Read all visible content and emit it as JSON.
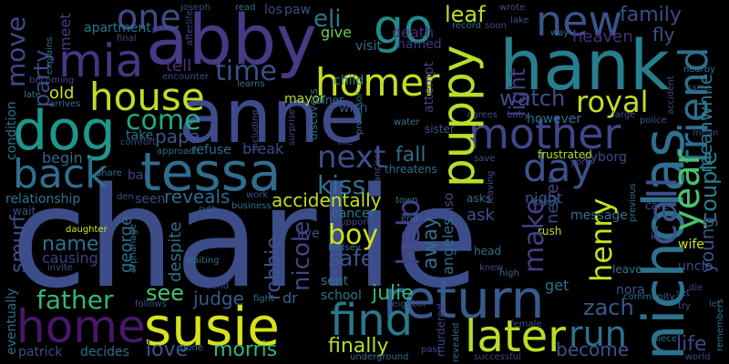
{
  "words": [
    {
      "text": "charlie",
      "color": "#3c4d8a"
    },
    {
      "text": "anne",
      "color": "#3f4a8a"
    },
    {
      "text": "abby",
      "color": "#453a84"
    },
    {
      "text": "hank",
      "color": "#277e8e"
    },
    {
      "text": "tessa",
      "color": "#2f6d8e"
    },
    {
      "text": "dog",
      "color": "#1f968b"
    },
    {
      "text": "mia",
      "color": "#453781"
    },
    {
      "text": "susie",
      "color": "#d8e219"
    },
    {
      "text": "nicholas",
      "color": "#2c728e"
    },
    {
      "text": "puppy",
      "color": "#b8de29"
    },
    {
      "text": "return",
      "color": "#38598c"
    },
    {
      "text": "find",
      "color": "#2a788e"
    },
    {
      "text": "house",
      "color": "#bddf26"
    },
    {
      "text": "homer",
      "color": "#c2df23"
    },
    {
      "text": "go",
      "color": "#238a8d"
    },
    {
      "text": "new",
      "color": "#3a548c"
    },
    {
      "text": "mother",
      "color": "#404688"
    },
    {
      "text": "home",
      "color": "#481769"
    },
    {
      "text": "later",
      "color": "#bade28"
    },
    {
      "text": "day",
      "color": "#3b528b"
    },
    {
      "text": "friend",
      "color": "#2d708e"
    },
    {
      "text": "call",
      "color": "#3b518b"
    },
    {
      "text": "year",
      "color": "#4cc26c"
    },
    {
      "text": "back",
      "color": "#2e6f8e"
    },
    {
      "text": "one",
      "color": "#3e4c8a"
    },
    {
      "text": "move",
      "color": "#3f4889"
    },
    {
      "text": "come",
      "color": "#23a983"
    },
    {
      "text": "next",
      "color": "#3d4e8a"
    },
    {
      "text": "help",
      "color": "#404388"
    },
    {
      "text": "run",
      "color": "#2b748e"
    },
    {
      "text": "henry",
      "color": "#c8e020"
    },
    {
      "text": "boy",
      "color": "#d0e11c"
    },
    {
      "text": "father",
      "color": "#33b67a"
    },
    {
      "text": "kiss",
      "color": "#2c728e"
    },
    {
      "text": "eli",
      "color": "#2a788e"
    },
    {
      "text": "time",
      "color": "#3c4f8a"
    },
    {
      "text": "royal",
      "color": "#c0df25"
    },
    {
      "text": "leaf",
      "color": "#bade28"
    },
    {
      "text": "party",
      "color": "#3e4989"
    },
    {
      "text": "couple",
      "color": "#26818e"
    },
    {
      "text": "robbie",
      "color": "#3a548c"
    },
    {
      "text": "nicole",
      "color": "#3f4788"
    },
    {
      "text": "make",
      "color": "#433e85"
    },
    {
      "text": "light",
      "color": "#433d84"
    },
    {
      "text": "fall",
      "color": "#2f6c8e"
    },
    {
      "text": "see",
      "color": "#4cc26c"
    },
    {
      "text": "morris",
      "color": "#35b779"
    },
    {
      "text": "finally",
      "color": "#b5de2b"
    },
    {
      "text": "love",
      "color": "#3b528b"
    },
    {
      "text": "papa",
      "color": "#39558c"
    },
    {
      "text": "watch",
      "color": "#3d4d8a"
    },
    {
      "text": "meanwhile",
      "color": "#2a788e"
    },
    {
      "text": "zach",
      "color": "#37598c"
    },
    {
      "text": "young",
      "color": "#3b518b"
    },
    {
      "text": "julie",
      "color": "#35b779"
    },
    {
      "text": "safe",
      "color": "#3a538b"
    },
    {
      "text": "name",
      "color": "#2c718e"
    },
    {
      "text": "judge",
      "color": "#38598c"
    },
    {
      "text": "smurf",
      "color": "#3d4e8a"
    },
    {
      "text": "accidentally",
      "color": "#c2df23"
    },
    {
      "text": "reveals",
      "color": "#2f6b8e"
    },
    {
      "text": "away",
      "color": "#2e6e8e"
    },
    {
      "text": "family",
      "color": "#3e4c8a"
    },
    {
      "text": "heaven",
      "color": "#472f7d"
    },
    {
      "text": "fly",
      "color": "#3c4f8a"
    },
    {
      "text": "leave",
      "color": "#2c728e"
    },
    {
      "text": "become",
      "color": "#3b528b"
    },
    {
      "text": "life",
      "color": "#404688"
    },
    {
      "text": "apartment",
      "color": "#2a768e"
    },
    {
      "text": "tell",
      "color": "#463480"
    },
    {
      "text": "old",
      "color": "#c6e021"
    },
    {
      "text": "give",
      "color": "#6ccd5a"
    },
    {
      "text": "child",
      "color": "#277f8e"
    },
    {
      "text": "mayor",
      "color": "#b2dd2d"
    },
    {
      "text": "refuse",
      "color": "#2f6b8e"
    },
    {
      "text": "break",
      "color": "#3f4889"
    },
    {
      "text": "take",
      "color": "#2c728e"
    },
    {
      "text": "begin",
      "color": "#31688e"
    },
    {
      "text": "relationship",
      "color": "#2a788e"
    },
    {
      "text": "george",
      "color": "#2f6c8e"
    },
    {
      "text": "despite",
      "color": "#2d708e"
    },
    {
      "text": "causing",
      "color": "#433e85"
    },
    {
      "text": "dr",
      "color": "#31688e"
    },
    {
      "text": "sent",
      "color": "#2c728e"
    },
    {
      "text": "school",
      "color": "#2a788e"
    },
    {
      "text": "nora",
      "color": "#3b518b"
    },
    {
      "text": "cyborg",
      "color": "#3e4a89"
    },
    {
      "text": "message",
      "color": "#2b748e"
    },
    {
      "text": "never",
      "color": "#404588"
    },
    {
      "text": "uncle",
      "color": "#3d4d8a"
    },
    {
      "text": "wife",
      "color": "#cbe11e"
    },
    {
      "text": "get",
      "color": "#2e6f8e"
    },
    {
      "text": "angeles",
      "color": "#2e6e8e"
    },
    {
      "text": "night",
      "color": "#3d4e8a"
    },
    {
      "text": "however",
      "color": "#2c728e"
    },
    {
      "text": "frustrated",
      "color": "#b5de2b"
    },
    {
      "text": "cancer",
      "color": "#2a778e"
    },
    {
      "text": "live",
      "color": "#3b518b"
    },
    {
      "text": "meet",
      "color": "#433e85"
    },
    {
      "text": "death",
      "color": "#472c7a"
    },
    {
      "text": "visit",
      "color": "#2d708e"
    },
    {
      "text": "named",
      "color": "#453882"
    },
    {
      "text": "seen",
      "color": "#3e4a89"
    },
    {
      "text": "wish",
      "color": "#3c4f8a"
    },
    {
      "text": "eventually",
      "color": "#2e6e8e"
    },
    {
      "text": "patrick",
      "color": "#3d4e8a"
    },
    {
      "text": "decides",
      "color": "#2d708e"
    },
    {
      "text": "condition",
      "color": "#2c728e"
    },
    {
      "text": "daughter",
      "color": "#d2e21b"
    },
    {
      "text": "bar",
      "color": "#3f4788"
    },
    {
      "text": "water",
      "color": "#2a788e"
    },
    {
      "text": "sister",
      "color": "#3b528b"
    },
    {
      "text": "attempt",
      "color": "#433e85"
    },
    {
      "text": "los",
      "color": "#3e4a89"
    },
    {
      "text": "paw",
      "color": "#3d4d8a"
    },
    {
      "text": "diner",
      "color": "#2e6e8e"
    },
    {
      "text": "also",
      "color": "#3e4c8a"
    },
    {
      "text": "ask",
      "color": "#3b528b"
    },
    {
      "text": "asks",
      "color": "#2f6b8e"
    },
    {
      "text": "rush",
      "color": "#bddf26"
    },
    {
      "text": "follow",
      "color": "#2d708e"
    },
    {
      "text": "care",
      "color": "#3e4a89"
    },
    {
      "text": "game",
      "color": "#3f4889"
    },
    {
      "text": "police",
      "color": "#3b528b"
    },
    {
      "text": "large",
      "color": "#3d4d8a"
    },
    {
      "text": "accident",
      "color": "#3f4788"
    },
    {
      "text": "town",
      "color": "#2a788e"
    },
    {
      "text": "support",
      "color": "#3e4c8a"
    },
    {
      "text": "threatens",
      "color": "#2e6e8e"
    },
    {
      "text": "head",
      "color": "#2c728e"
    },
    {
      "text": "high",
      "color": "#2f6c8e"
    },
    {
      "text": "keep",
      "color": "#3b528b"
    },
    {
      "text": "neighbor",
      "color": "#3e4989"
    },
    {
      "text": "fight",
      "color": "#2c728e"
    },
    {
      "text": "waiting",
      "color": "#2d708e"
    },
    {
      "text": "business",
      "color": "#2c728e"
    },
    {
      "text": "work",
      "color": "#3b528b"
    },
    {
      "text": "follows",
      "color": "#3d4e8a"
    },
    {
      "text": "gone",
      "color": "#2d708e"
    },
    {
      "text": "past",
      "color": "#3f4889"
    },
    {
      "text": "revealed",
      "color": "#2e6e8e"
    },
    {
      "text": "successful",
      "color": "#3f4788"
    },
    {
      "text": "world",
      "color": "#3e4a89"
    },
    {
      "text": "piece",
      "color": "#2c728e"
    },
    {
      "text": "female",
      "color": "#3d4d8a"
    },
    {
      "text": "set",
      "color": "#3b528b"
    },
    {
      "text": "community",
      "color": "#2d708e"
    },
    {
      "text": "joseph",
      "color": "#3e4a89"
    },
    {
      "text": "read",
      "color": "#2c728e"
    },
    {
      "text": "wrote",
      "color": "#3d4e8a"
    },
    {
      "text": "record",
      "color": "#2e6e8e"
    },
    {
      "text": "lake",
      "color": "#3f4889"
    },
    {
      "text": "way",
      "color": "#2d708e"
    },
    {
      "text": "final",
      "color": "#3e4a89"
    },
    {
      "text": "encounter",
      "color": "#3d4d8a"
    },
    {
      "text": "learns",
      "color": "#2c728e"
    },
    {
      "text": "becoming",
      "color": "#3f4788"
    },
    {
      "text": "arrives",
      "color": "#2e6e8e"
    },
    {
      "text": "late",
      "color": "#2a788e"
    },
    {
      "text": "comfort",
      "color": "#3d4e8a"
    },
    {
      "text": "approach",
      "color": "#2d708e"
    },
    {
      "text": "including",
      "color": "#3b528b"
    },
    {
      "text": "surprise",
      "color": "#3f4889"
    },
    {
      "text": "discovers",
      "color": "#2e6e8e"
    },
    {
      "text": "professor",
      "color": "#2c728e"
    },
    {
      "text": "like",
      "color": "#3e4a89"
    },
    {
      "text": "agrees",
      "color": "#3d4d8a"
    },
    {
      "text": "baby",
      "color": "#3f4788"
    },
    {
      "text": "share",
      "color": "#2d708e"
    },
    {
      "text": "den",
      "color": "#3b528b"
    },
    {
      "text": "ruth",
      "color": "#2e6e8e"
    },
    {
      "text": "bond",
      "color": "#3e4a89"
    },
    {
      "text": "invite",
      "color": "#3d4e8a"
    },
    {
      "text": "lindsey",
      "color": "#2c728e"
    },
    {
      "text": "knew",
      "color": "#3f4889"
    },
    {
      "text": "end",
      "color": "#2d708e"
    },
    {
      "text": "francisco",
      "color": "#3b528b"
    },
    {
      "text": "york",
      "color": "#3e4a89"
    },
    {
      "text": "wait",
      "color": "#3d4d8a"
    },
    {
      "text": "murdered",
      "color": "#3f4788"
    },
    {
      "text": "underground",
      "color": "#2e6e8e"
    },
    {
      "text": "remembers",
      "color": "#2c728e"
    },
    {
      "text": "let",
      "color": "#3b528b"
    },
    {
      "text": "die",
      "color": "#3e4a89"
    },
    {
      "text": "try",
      "color": "#3d4e8a"
    },
    {
      "text": "nearby",
      "color": "#2d708e"
    },
    {
      "text": "mean",
      "color": "#3f4889"
    },
    {
      "text": "previous",
      "color": "#2e6e8e"
    },
    {
      "text": "leaving",
      "color": "#3e4a89"
    },
    {
      "text": "save",
      "color": "#3b528b"
    },
    {
      "text": "orphanage",
      "color": "#2c728e"
    },
    {
      "text": "afterlife",
      "color": "#3d4d8a"
    },
    {
      "text": "explains",
      "color": "#2d708e"
    },
    {
      "text": "soon",
      "color": "#3f4788"
    }
  ]
}
